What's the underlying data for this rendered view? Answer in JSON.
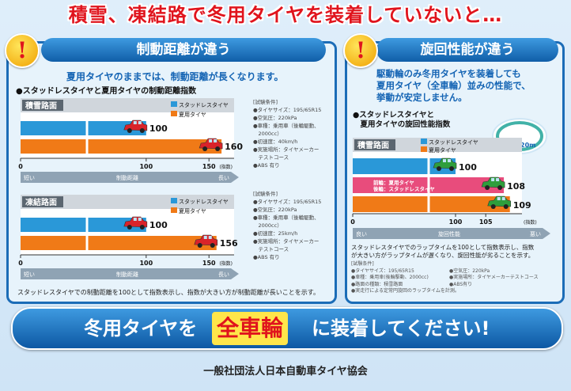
{
  "headline": "積雪、凍結路で冬用タイヤを装着していないと…",
  "left_panel": {
    "title": "制動距離が違う",
    "lead": "夏用タイヤのままでは、制動距離が長くなります。",
    "subhead": "●スタッドレスタイヤと夏用タイヤの制動距離指数",
    "note": "スタッドレスタイヤでの制動距離を100として指数表示し、指数が大きい方が制動距離が長いことを示す。",
    "conditions_snow": [
      "[試験条件]",
      "●タイヤサイズ：195/65R15",
      "●空気圧：220kPa",
      "●車種：乗用車（後輪駆動、",
      "　2000cc）",
      "●初速度：40km/h",
      "●実施場所：タイヤメーカー",
      "　テストコース",
      "●ABS 有り"
    ],
    "conditions_ice": [
      "[試験条件]",
      "●タイヤサイズ：195/65R15",
      "●空気圧：220kPa",
      "●車種：乗用車（後輪駆動、",
      "　2000cc）",
      "●初速度：25km/h",
      "●実施場所：タイヤメーカー",
      "　テストコース",
      "●ABS 有り"
    ]
  },
  "right_panel": {
    "title": "旋回性能が違う",
    "lead": [
      "駆動輪のみ冬用タイヤを装着しても",
      "夏用タイヤ（全車輪）並みの性能で、",
      "挙動が安定しません。"
    ],
    "subhead": [
      "●スタッドレスタイヤと",
      "　夏用タイヤの旋回性能指数"
    ],
    "radius_label": "半径20m",
    "note": [
      "スタッドレスタイヤでのラップタイムを100として指数表示し、指数",
      "が大きい方がラップタイムが遅くなり、旋回性能が劣ることを示す。"
    ],
    "conditions_left": [
      "[試験条件]",
      "●タイヤサイズ：195/65R15",
      "●車種：乗用車(後輪駆動、2000cc)",
      "●路面の種類：積雪路面",
      "●実走行による定常円旋回のラップタイムを計測。"
    ],
    "conditions_right": [
      "●空気圧：220kPa",
      "●実施場所：タイヤメーカーテストコース",
      "●ABS有り"
    ]
  },
  "banner": {
    "pre": "冬用タイヤを",
    "highlight": "全車輪",
    "post": "に装着してください!"
  },
  "footer": "一般社団法人日本自動車タイヤ協会",
  "colors": {
    "studless": "#2a98d8",
    "summer": "#f07a17",
    "mixed": "#e84c7c",
    "accent_red": "#e0141d",
    "brand_blue": "#1464b4"
  },
  "chart_data": [
    {
      "type": "bar",
      "title": "積雪路面",
      "categories": [
        "スタッドレスタイヤ",
        "夏用タイヤ"
      ],
      "values": [
        100,
        160
      ],
      "xlim": [
        0,
        170
      ],
      "ticks": [
        0,
        100,
        150
      ],
      "xunit": "(指数)",
      "axis_short": "短い",
      "axis_label": "制動距離",
      "axis_long": "長い"
    },
    {
      "type": "bar",
      "title": "凍結路面",
      "categories": [
        "スタッドレスタイヤ",
        "夏用タイヤ"
      ],
      "values": [
        100,
        156
      ],
      "xlim": [
        0,
        170
      ],
      "ticks": [
        0,
        100,
        150
      ],
      "xunit": "(指数)",
      "axis_short": "短い",
      "axis_label": "制動距離",
      "axis_long": "長い"
    },
    {
      "type": "bar",
      "title": "積雪路面",
      "legend": [
        "スタッドレスタイヤ",
        "夏用タイヤ"
      ],
      "categories": [
        "スタッドレスタイヤ",
        "前輪：夏用タイヤ　後輪：スタッドレスタイヤ",
        "夏用タイヤ"
      ],
      "bar_labels": [
        "",
        "前輪：夏用タイヤ\n後輪：スタッドレスタイヤ",
        ""
      ],
      "values": [
        100,
        108,
        109
      ],
      "xlim": [
        0,
        111
      ],
      "ticks": [
        0,
        100,
        105
      ],
      "xunit": "(指数)",
      "axis_short": "良い",
      "axis_label": "旋回性能",
      "axis_long": "悪い"
    }
  ]
}
